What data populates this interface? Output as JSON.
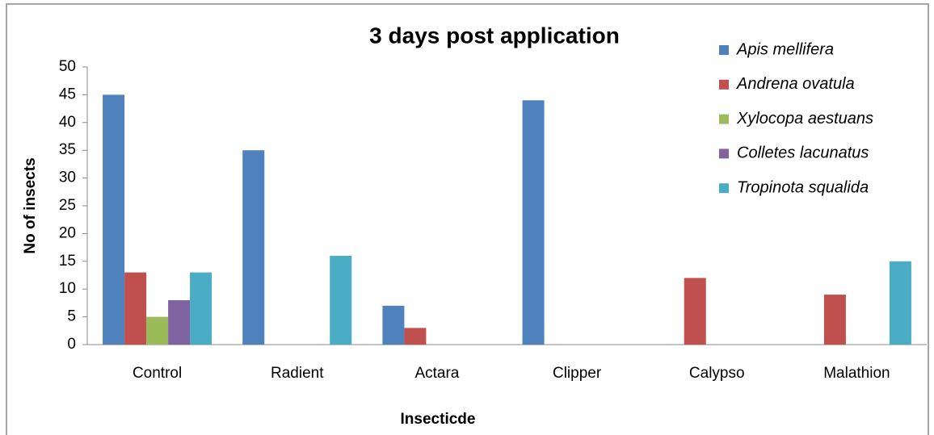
{
  "chart_data": {
    "type": "bar",
    "title": "3 days post application",
    "x_label": "Insecticde",
    "y_label": "No of insects",
    "categories": [
      "Control",
      "Radient",
      "Actara",
      "Clipper",
      "Calypso",
      "Malathion"
    ],
    "series": [
      {
        "name": "Apis mellifera",
        "color": "#4f81bd",
        "values": [
          45,
          35,
          7,
          44,
          0,
          0
        ]
      },
      {
        "name": "Andrena ovatula",
        "color": "#c0504d",
        "values": [
          13,
          0,
          3,
          0,
          12,
          9
        ]
      },
      {
        "name": "Xylocopa aestuans",
        "color": "#9bbb59",
        "values": [
          5,
          0,
          0,
          0,
          0,
          0
        ]
      },
      {
        "name": "Colletes lacunatus",
        "color": "#8064a2",
        "values": [
          8,
          0,
          0,
          0,
          0,
          0
        ]
      },
      {
        "name": "Tropinota squalida",
        "color": "#4bacc6",
        "values": [
          13,
          16,
          0,
          0,
          0,
          15
        ]
      }
    ],
    "ylim": [
      0,
      50
    ],
    "yticks": [
      0,
      5,
      10,
      15,
      20,
      25,
      30,
      35,
      40,
      45,
      50
    ],
    "grid": false,
    "legend": "right"
  }
}
